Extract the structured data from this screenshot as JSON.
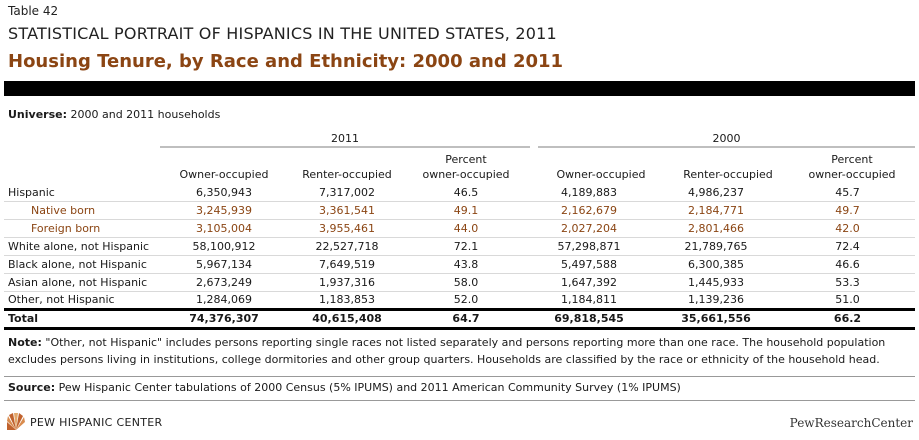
{
  "header": {
    "table_label": "Table 42",
    "series_title": "STATISTICAL PORTRAIT OF HISPANICS IN THE UNITED STATES, 2011",
    "title": "Housing Tenure, by Race and Ethnicity: 2000 and 2011"
  },
  "universe": {
    "label": "Universe:",
    "text": "2000 and 2011 households"
  },
  "groups": [
    "2011",
    "2000"
  ],
  "columns": [
    "Owner-occupied",
    "Renter-occupied",
    "Percent owner-occupied",
    "Owner-occupied",
    "Renter-occupied",
    "Percent owner-occupied"
  ],
  "column_lines": {
    "pct_line1": "Percent",
    "pct_line2": "owner-occupied"
  },
  "rows": [
    {
      "name": "Hispanic",
      "values": [
        "6,350,943",
        "7,317,002",
        "46.5",
        "4,189,883",
        "4,986,237",
        "45.7"
      ]
    },
    {
      "name": "Native born",
      "values": [
        "3,245,939",
        "3,361,541",
        "49.1",
        "2,162,679",
        "2,184,771",
        "49.7"
      ]
    },
    {
      "name": "Foreign born",
      "values": [
        "3,105,004",
        "3,955,461",
        "44.0",
        "2,027,204",
        "2,801,466",
        "42.0"
      ]
    },
    {
      "name": "White alone, not Hispanic",
      "values": [
        "58,100,912",
        "22,527,718",
        "72.1",
        "57,298,871",
        "21,789,765",
        "72.4"
      ]
    },
    {
      "name": "Black alone, not Hispanic",
      "values": [
        "5,967,134",
        "7,649,519",
        "43.8",
        "5,497,588",
        "6,300,385",
        "46.6"
      ]
    },
    {
      "name": "Asian alone, not Hispanic",
      "values": [
        "2,673,249",
        "1,937,316",
        "58.0",
        "1,647,392",
        "1,445,933",
        "53.3"
      ]
    },
    {
      "name": "Other, not Hispanic",
      "values": [
        "1,284,069",
        "1,183,853",
        "52.0",
        "1,184,811",
        "1,139,236",
        "51.0"
      ]
    }
  ],
  "total": {
    "name": "Total",
    "values": [
      "74,376,307",
      "40,615,408",
      "64.7",
      "69,818,545",
      "35,661,556",
      "66.2"
    ]
  },
  "note": {
    "label": "Note:",
    "text": "\"Other, not Hispanic\" includes persons reporting single races not listed separately and persons reporting more than one race. The household population excludes persons living in institutions, college dormitories and other group quarters. Households are classified by the race or ethnicity of the household head."
  },
  "source": {
    "label": "Source:",
    "text": "Pew Hispanic Center tabulations of 2000 Census (5% IPUMS) and 2011 American Community Survey (1% IPUMS)"
  },
  "footer": {
    "left_logo_text": "PEW HISPANIC CENTER",
    "right_logo_text": "PewResearchCenter",
    "logo_icon": "sunburst-logo-icon"
  },
  "colors": {
    "title": "#8b4513",
    "subrow": "#8b4513",
    "bar": "#000000"
  }
}
